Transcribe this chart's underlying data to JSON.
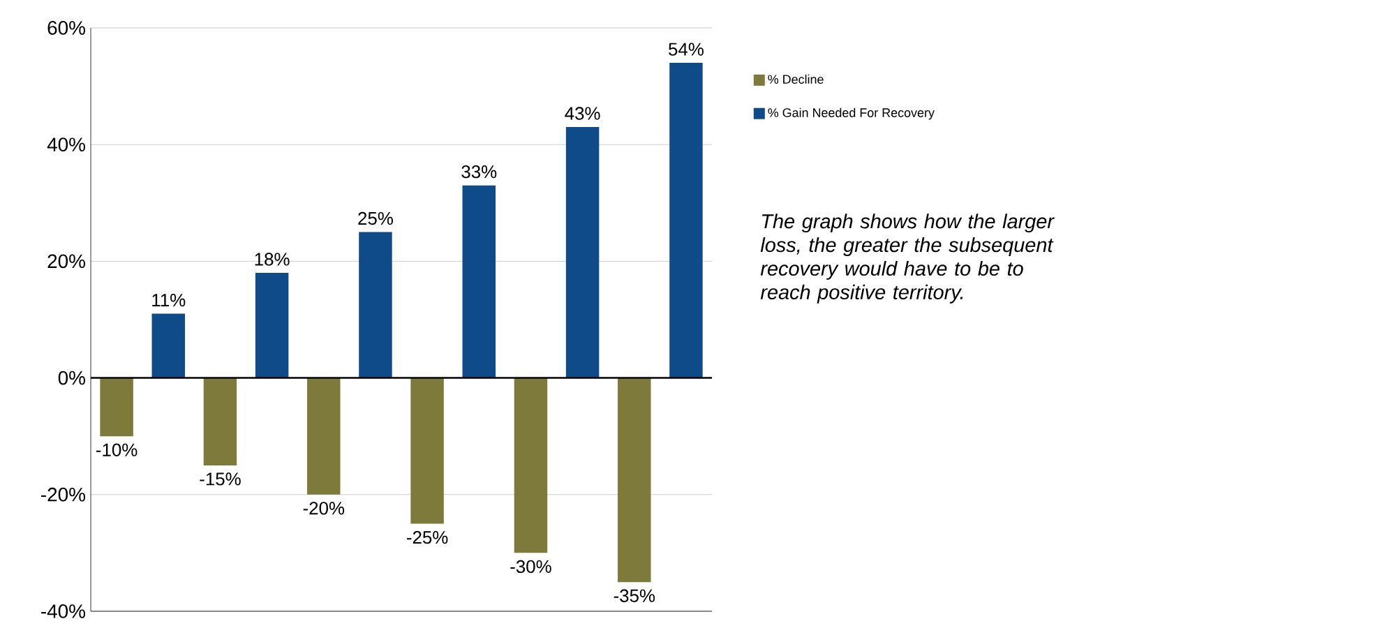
{
  "chart_data": {
    "type": "bar",
    "categories": [
      null,
      null,
      null,
      null,
      null,
      null
    ],
    "series": [
      {
        "name": "% Decline",
        "color": "#7d7a3c",
        "values": [
          -10,
          -15,
          -20,
          -25,
          -30,
          -35
        ],
        "value_labels": [
          "-10%",
          "-15%",
          "-20%",
          "-25%",
          "-30%",
          "-35%"
        ]
      },
      {
        "name": "% Gain Needed For Recovery",
        "color": "#0f4a89",
        "values": [
          11,
          18,
          25,
          33,
          43,
          54
        ],
        "value_labels": [
          "11%",
          "18%",
          "25%",
          "33%",
          "43%",
          "54%"
        ]
      }
    ],
    "ylim": [
      -40,
      60
    ],
    "yticks": [
      {
        "value": -40,
        "label": "-40%"
      },
      {
        "value": -20,
        "label": "-20%"
      },
      {
        "value": 0,
        "label": "0%"
      },
      {
        "value": 20,
        "label": "20%"
      },
      {
        "value": 40,
        "label": "40%"
      },
      {
        "value": 60,
        "label": "60%"
      }
    ],
    "grid": "y",
    "legend": "right",
    "annotations": [
      "The graph shows how the larger loss, the greater the subsequent recovery would have to be to reach positive territory."
    ]
  }
}
